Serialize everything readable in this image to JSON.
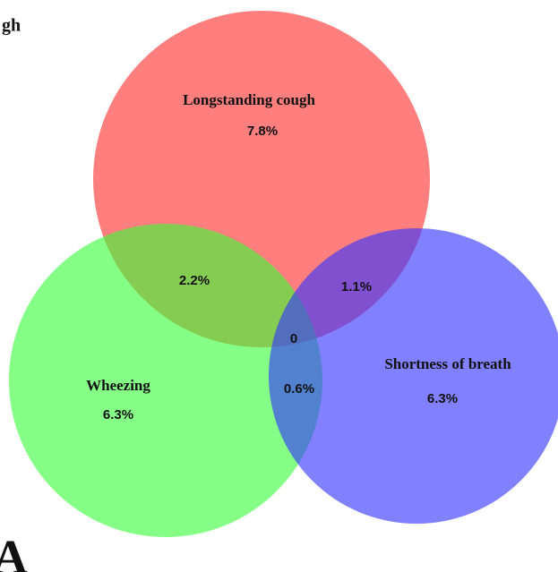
{
  "corner_text": "gh",
  "panel_label": "A",
  "sets": [
    {
      "label": "Longstanding cough",
      "value": "7.8%"
    },
    {
      "label": "Wheezing",
      "value": "6.3%"
    },
    {
      "label": "Shortness of breath",
      "value": "6.3%"
    }
  ],
  "intersections": {
    "cough_wheezing": "2.2%",
    "cough_breath": "1.1%",
    "all": "0",
    "wheezing_breath": "0.6%"
  }
}
